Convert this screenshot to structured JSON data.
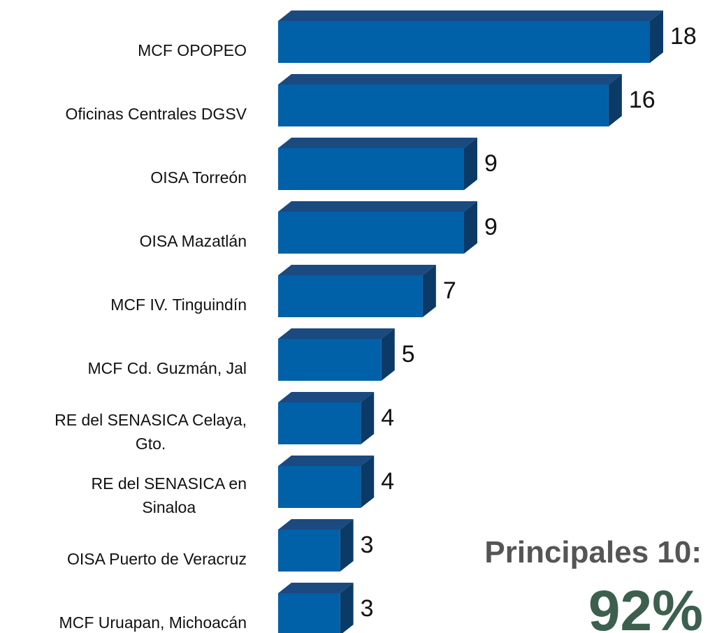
{
  "chart_data": {
    "type": "bar",
    "orientation": "horizontal",
    "categories": [
      "MCF OPOPEO",
      "Oficinas Centrales DGSV",
      "OISA Torreón",
      "OISA Mazatlán",
      "MCF IV. Tinguindín",
      "MCF Cd. Guzmán, Jal",
      "RE del SENASICA Celaya,\nGto.",
      "RE del SENASICA en\nSinaloa",
      "OISA Puerto de Veracruz",
      "MCF Uruapan, Michoacán"
    ],
    "values": [
      18,
      16,
      9,
      9,
      7,
      5,
      4,
      4,
      3,
      3
    ],
    "color": "#0060a8",
    "annotations": [
      "Principales 10:",
      "92%"
    ]
  }
}
